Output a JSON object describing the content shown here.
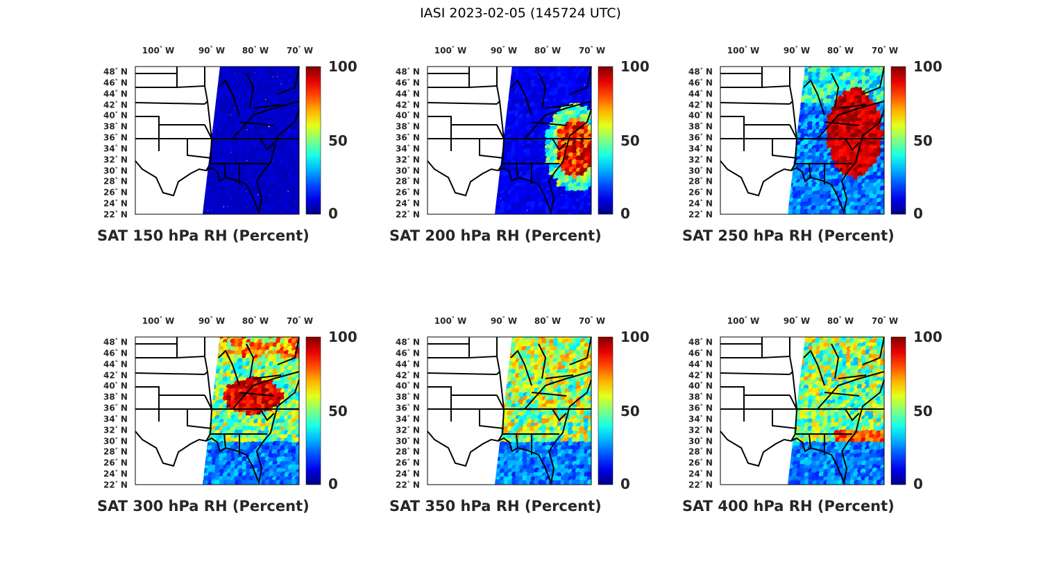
{
  "title": "IASI 2023-02-05 (145724 UTC)",
  "lon_ticks": [
    "100",
    "90",
    "80",
    "70"
  ],
  "lon_suffix": "W",
  "lat_ticks": [
    "48",
    "46",
    "44",
    "42",
    "40",
    "38",
    "36",
    "34",
    "32",
    "30",
    "28",
    "26",
    "24",
    "22"
  ],
  "lat_suffix": "N",
  "degree_symbol": "°",
  "colorbar": {
    "ticks": [
      "100",
      "50",
      "0"
    ],
    "range": [
      0,
      100
    ],
    "colormap": "jet"
  },
  "panels": [
    {
      "title": "SAT 150 hPa RH (Percent)",
      "pattern": "uniform-low"
    },
    {
      "title": "SAT 200 hPa RH (Percent)",
      "pattern": "low-with-east-coast-high"
    },
    {
      "title": "SAT 250 hPa RH (Percent)",
      "pattern": "high-northeast"
    },
    {
      "title": "SAT 300 hPa RH (Percent)",
      "pattern": "mixed-north-high-band"
    },
    {
      "title": "SAT 350 hPa RH (Percent)",
      "pattern": "mixed-moderate"
    },
    {
      "title": "SAT 400 hPa RH (Percent)",
      "pattern": "mixed-moderate-2"
    }
  ]
}
